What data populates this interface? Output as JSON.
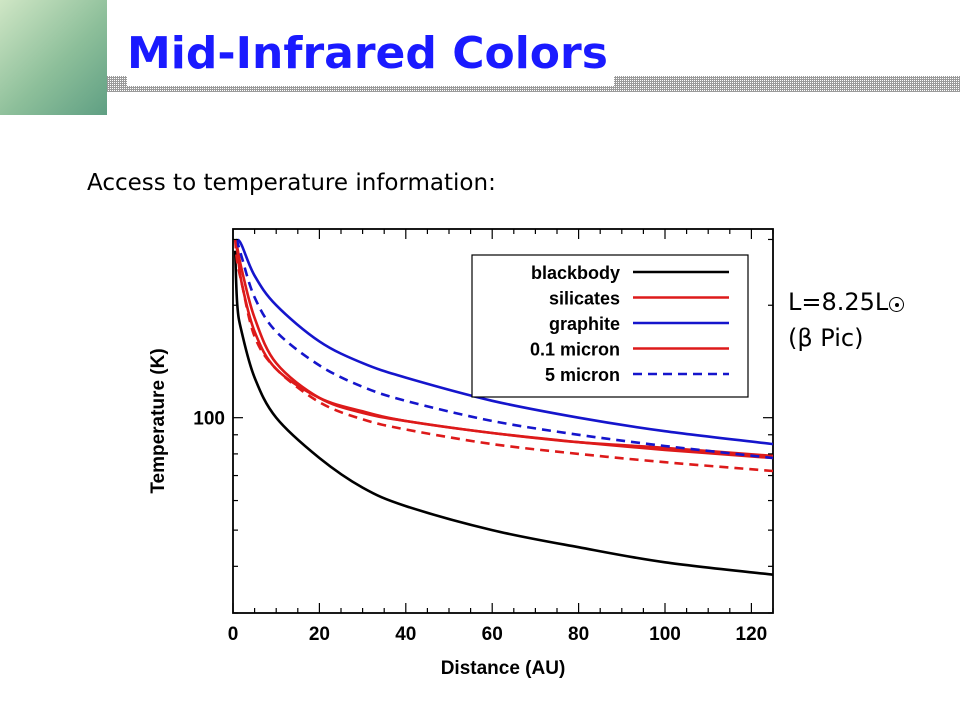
{
  "slide": {
    "title": "Mid-Infrared Colors",
    "subtitle": "Access to temperature information:",
    "note_line1": "L=8.25L",
    "note_line2": "(β Pic)"
  },
  "chart_data": {
    "type": "line",
    "xlabel": "Distance (AU)",
    "ylabel": "Temperature (K)",
    "xlim": [
      0,
      125
    ],
    "ylim": [
      30,
      320
    ],
    "yscale": "log",
    "x_ticks": [
      0,
      20,
      40,
      60,
      80,
      100,
      120
    ],
    "y_ticks": [
      100
    ],
    "legend_position": "top-right",
    "series": [
      {
        "name": "blackbody",
        "color": "#000000",
        "dash": "solid",
        "x": [
          0.5,
          1,
          2,
          5,
          10,
          20,
          30,
          40,
          60,
          80,
          100,
          125
        ],
        "y": [
          280,
          200,
          170,
          128,
          100,
          78,
          65,
          58,
          50,
          45,
          41,
          38
        ]
      },
      {
        "name": "silicates",
        "color": "#dd1a1a",
        "dash": "solid",
        "x": [
          0.5,
          1,
          2,
          5,
          10,
          20,
          30,
          40,
          60,
          80,
          100,
          125
        ],
        "y": [
          300,
          280,
          230,
          170,
          135,
          113,
          104,
          98,
          91,
          86,
          82,
          78
        ]
      },
      {
        "name": "graphite",
        "color": "#1515cc",
        "dash": "solid",
        "x": [
          1,
          2,
          5,
          10,
          20,
          30,
          40,
          60,
          80,
          100,
          125
        ],
        "y": [
          300,
          290,
          240,
          200,
          160,
          140,
          128,
          111,
          100,
          92,
          85
        ]
      },
      {
        "name": "0.1 micron",
        "color": "#dd1a1a",
        "dash": "solid",
        "x": [
          0.5,
          1,
          2,
          5,
          10,
          20,
          30,
          40,
          60,
          80,
          100,
          125
        ],
        "y": [
          300,
          285,
          250,
          185,
          140,
          113,
          103,
          98,
          91,
          86,
          83,
          79
        ]
      },
      {
        "name": "5 micron",
        "color": "#1515cc",
        "dash": "dashed",
        "x": [
          0.5,
          1,
          2,
          5,
          10,
          20,
          30,
          40,
          60,
          80,
          100,
          125
        ],
        "y": [
          300,
          295,
          270,
          210,
          170,
          138,
          121,
          111,
          98,
          90,
          84,
          78
        ]
      },
      {
        "name": "",
        "color": "#dd1a1a",
        "dash": "dashed",
        "x": [
          0.5,
          1,
          2,
          5,
          10,
          20,
          30,
          40,
          60,
          80,
          100,
          125
        ],
        "y": [
          300,
          260,
          230,
          165,
          135,
          110,
          99,
          93,
          85,
          80,
          76,
          72
        ]
      }
    ]
  }
}
